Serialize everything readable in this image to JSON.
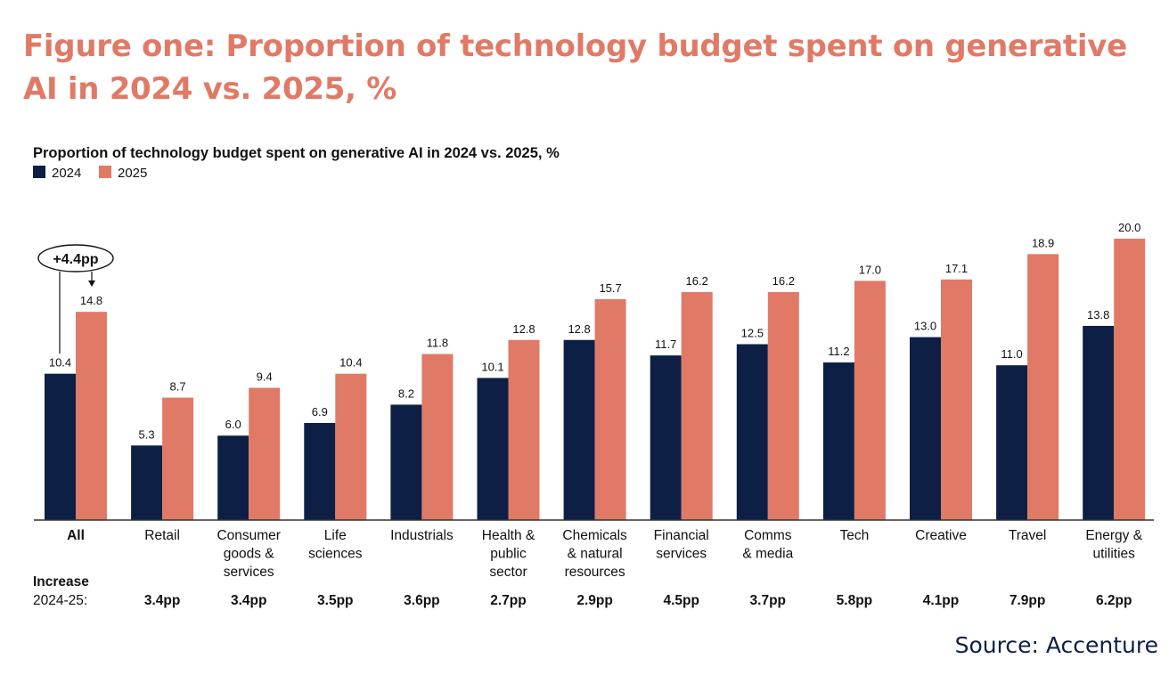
{
  "page_title": "Figure one: Proportion of technology budget spent on generative AI in 2024 vs. 2025, %",
  "source": "Source: Accenture",
  "colors": {
    "title": "#E07A66",
    "series_2024": "#0D1F45",
    "series_2025": "#E07A66",
    "source": "#0D1F45"
  },
  "chart_data": {
    "type": "bar",
    "title": "Proportion of technology budget spent on generative AI in 2024 vs. 2025, %",
    "categories": [
      [
        "All"
      ],
      [
        "Retail"
      ],
      [
        "Consumer",
        "goods &",
        "services"
      ],
      [
        "Life",
        "sciences"
      ],
      [
        "Industrials"
      ],
      [
        "Health &",
        "public",
        "sector"
      ],
      [
        "Chemicals",
        "& natural",
        "resources"
      ],
      [
        "Financial",
        "services"
      ],
      [
        "Comms",
        "& media"
      ],
      [
        "Tech"
      ],
      [
        "Creative"
      ],
      [
        "Travel"
      ],
      [
        "Energy &",
        "utilities"
      ]
    ],
    "series": [
      {
        "name": "2024",
        "color": "#0D1F45",
        "values": [
          10.4,
          5.3,
          6.0,
          6.9,
          8.2,
          10.1,
          12.8,
          11.7,
          12.5,
          11.2,
          13.0,
          11.0,
          13.8
        ],
        "labels": [
          "10.4",
          "5.3",
          "6.0",
          "6.9",
          "8.2",
          "10.1",
          "12.8",
          "11.7",
          "12.5",
          "11.2",
          "13.0",
          "11.0",
          "13.8"
        ]
      },
      {
        "name": "2025",
        "color": "#E07A66",
        "values": [
          14.8,
          8.7,
          9.4,
          10.4,
          11.8,
          12.8,
          15.7,
          16.2,
          16.2,
          17.0,
          17.1,
          18.9,
          20.0
        ],
        "labels": [
          "14.8",
          "8.7",
          "9.4",
          "10.4",
          "11.8",
          "12.8",
          "15.7",
          "16.2",
          "16.2",
          "17.0",
          "17.1",
          "18.9",
          "20.0"
        ]
      }
    ],
    "increase_label": [
      "Increase",
      "2024-25:"
    ],
    "increase": [
      "3.4pp",
      "3.4pp",
      "3.5pp",
      "3.6pp",
      "2.7pp",
      "2.9pp",
      "4.5pp",
      "3.7pp",
      "5.8pp",
      "4.1pp",
      "7.9pp",
      "6.2pp"
    ],
    "annotation": "+4.4pp",
    "ylim": [
      0,
      20
    ],
    "legend_position": "top-left",
    "grid": false
  }
}
